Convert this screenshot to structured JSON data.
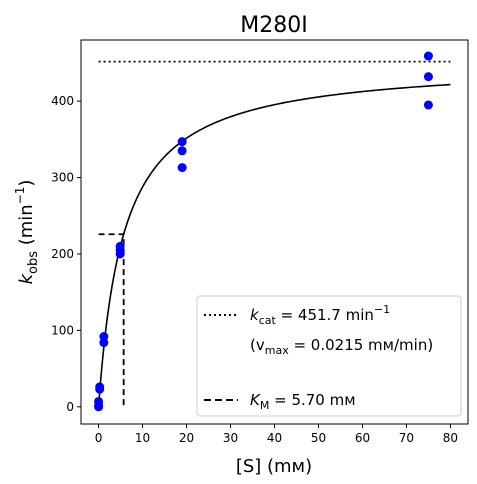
{
  "chart_data": {
    "type": "scatter",
    "title": "M280I",
    "xlabel": "[S] (mм)",
    "ylabel": {
      "main": "k",
      "sub": "obs",
      "unit_open": " (min",
      "sup": "−1",
      "unit_close": ")"
    },
    "xlim": [
      -4,
      84
    ],
    "ylim": [
      -22.5,
      480
    ],
    "xticks": [
      0,
      10,
      20,
      30,
      40,
      50,
      60,
      70,
      80
    ],
    "yticks": [
      0,
      100,
      200,
      300,
      400
    ],
    "grid": false,
    "legend_position": "lower-right",
    "colors": {
      "points": "#0000ff",
      "fit": "#000000"
    },
    "points": [
      {
        "x": 0,
        "y": 0
      },
      {
        "x": 0,
        "y": 2
      },
      {
        "x": 0,
        "y": 7
      },
      {
        "x": 0.25,
        "y": 23
      },
      {
        "x": 0.25,
        "y": 26
      },
      {
        "x": 1.2,
        "y": 84
      },
      {
        "x": 1.2,
        "y": 92
      },
      {
        "x": 4.9,
        "y": 200
      },
      {
        "x": 4.9,
        "y": 205
      },
      {
        "x": 4.9,
        "y": 210
      },
      {
        "x": 19,
        "y": 313
      },
      {
        "x": 19,
        "y": 335
      },
      {
        "x": 19,
        "y": 347
      },
      {
        "x": 75,
        "y": 395
      },
      {
        "x": 75,
        "y": 432
      },
      {
        "x": 75,
        "y": 459
      }
    ],
    "fit": {
      "model": "michaelis-menten",
      "kcat": 451.7,
      "km": 5.7,
      "x_range": [
        0,
        80
      ]
    },
    "kcat_line": {
      "y": 451.7,
      "x_range": [
        0,
        80
      ]
    },
    "km_line": {
      "x": 5.7,
      "y": 225.85,
      "x_start": 0
    },
    "legend": [
      {
        "style": "dotted",
        "sym": "k",
        "sub": "cat",
        "text": " = 451.7 min",
        "sup": "−1"
      },
      {
        "style": "none",
        "text": "(v",
        "sub": "max",
        "text2": " = 0.0215 mм/min)"
      },
      {
        "style": "dashed",
        "sym": "K",
        "sub": "M",
        "text": " = 5.70 mм"
      }
    ]
  }
}
